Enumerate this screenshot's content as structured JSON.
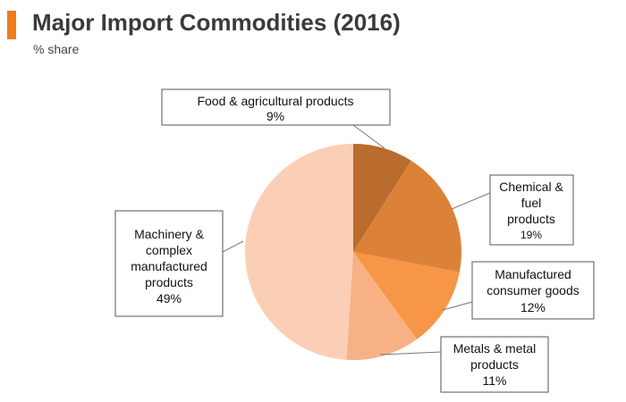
{
  "header": {
    "title": "Major Import Commodities (2016)",
    "subtitle": "% share",
    "accent_color": "#f07b1d"
  },
  "chart_data": {
    "type": "pie",
    "title": "Major Import Commodities (2016)",
    "subtitle": "% share",
    "start_angle_deg": 0,
    "direction": "clockwise",
    "slices": [
      {
        "name": "Food & agricultural products",
        "value": 9,
        "label_lines": [
          "Food & agricultural products"
        ],
        "pct_label": "9%",
        "color": "#b96c2e"
      },
      {
        "name": "Chemical & fuel products",
        "value": 19,
        "label_lines": [
          "Chemical &",
          "fuel",
          "products"
        ],
        "pct_label": "19%",
        "color": "#dc8238"
      },
      {
        "name": "Manufactured consumer goods",
        "value": 12,
        "label_lines": [
          "Manufactured",
          "consumer goods"
        ],
        "pct_label": "12%",
        "color": "#f79646"
      },
      {
        "name": "Metals & metal products",
        "value": 11,
        "label_lines": [
          "Metals & metal",
          "products"
        ],
        "pct_label": "11%",
        "color": "#f8b184"
      },
      {
        "name": "Machinery & complex manufactured products",
        "value": 49,
        "label_lines": [
          "Machinery &",
          "complex",
          "manufactured",
          "products"
        ],
        "pct_label": "49%",
        "color": "#fbcfb5"
      }
    ]
  }
}
